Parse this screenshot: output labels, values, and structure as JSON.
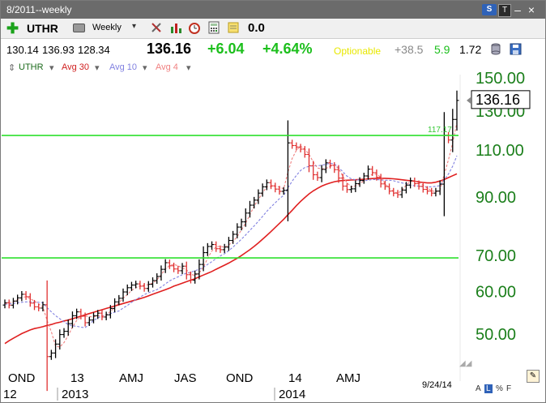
{
  "window": {
    "title": "8/2011--weekly",
    "s_button": "S",
    "t_button": "T",
    "min_glyph": "–",
    "close_glyph": "×"
  },
  "toolbar": {
    "symbol": "UTHR",
    "period": "Weekly",
    "period_caret": "▾",
    "plus_glyph": "✚",
    "value": "0.0",
    "icons": [
      "add-icon",
      "print-icon",
      "tools-icon",
      "bar-chart-icon",
      "alarm-icon",
      "calculator-icon",
      "note-icon"
    ]
  },
  "quote": {
    "open": "130.14",
    "high": "136.93",
    "low": "128.34",
    "last": "136.16",
    "change": "+6.04",
    "change_pct": "+4.64%",
    "optionable": "Optionable",
    "v1": "+38.5",
    "v2": "5.9",
    "v3": "1.72"
  },
  "legend": {
    "symbol": "UTHR",
    "ma30": "Avg 30",
    "ma10": "Avg 10",
    "ma4": "Avg 4"
  },
  "colors": {
    "price_up": "#000000",
    "price_down": "#e03030",
    "ma30": "#e02020",
    "ma10": "#8080e0",
    "ma4": "#f08080",
    "hline": "#2ee02e",
    "axis_text": "#1b7f1b"
  },
  "chart_data": {
    "type": "ohlc",
    "scale": "log",
    "ylim": [
      40,
      160
    ],
    "y_ticks": [
      150,
      130,
      110,
      90,
      70,
      60,
      50
    ],
    "y_tick_labels": [
      "150.00",
      "130.00",
      "110.00",
      "90.00",
      "70.00",
      "60.00",
      "50.00"
    ],
    "last_price_label": "136.16",
    "horizontal_lines": [
      117.17,
      69.3
    ],
    "annotations": [
      {
        "text": "117.17",
        "y": 117.17
      }
    ],
    "x_labels_top": [
      "OND",
      "13",
      "AMJ",
      "JAS",
      "OND",
      "14",
      "AMJ"
    ],
    "x_labels_bottom": [
      "12",
      "2013",
      "2014"
    ],
    "date_label": "9/24/14",
    "bar_width_weeks": 1,
    "n_bars": 108,
    "closes": [
      57.2,
      56.6,
      57.6,
      58.4,
      59.3,
      58.7,
      57.1,
      56.2,
      55.9,
      56.7,
      45.4,
      46.1,
      47.9,
      49.9,
      50.6,
      52.3,
      54.1,
      55.0,
      54.0,
      52.5,
      53.1,
      54.1,
      54.7,
      53.8,
      54.3,
      55.8,
      57.4,
      58.3,
      59.9,
      61.0,
      61.7,
      62.0,
      61.4,
      60.8,
      61.9,
      62.9,
      64.0,
      66.0,
      67.9,
      67.0,
      66.1,
      65.6,
      66.9,
      64.5,
      63.0,
      64.7,
      67.4,
      70.9,
      72.8,
      73.4,
      72.1,
      71.8,
      72.6,
      74.7,
      76.7,
      79.1,
      80.9,
      84.0,
      86.9,
      88.8,
      91.5,
      94.0,
      95.7,
      94.4,
      93.1,
      92.2,
      92.6,
      113.5,
      112.2,
      111.5,
      110.5,
      108.0,
      102.9,
      99.0,
      97.8,
      101.3,
      104.2,
      103.1,
      101.2,
      97.6,
      94.3,
      92.9,
      93.2,
      95.3,
      96.6,
      98.5,
      101.4,
      99.9,
      97.9,
      95.2,
      94.1,
      92.3,
      91.5,
      90.9,
      92.7,
      94.7,
      96.5,
      95.3,
      94.2,
      93.0,
      92.3,
      91.5,
      92.3,
      95.1,
      117.3,
      114.9,
      125.5,
      136.16
    ],
    "ma30": [
      48.0,
      48.6,
      49.1,
      49.6,
      50.1,
      50.5,
      50.9,
      51.2,
      51.4,
      51.6,
      51.9,
      52.1,
      52.4,
      52.6,
      52.9,
      53.1,
      53.4,
      53.7,
      54.0,
      54.3,
      54.6,
      54.9,
      55.2,
      55.5,
      55.8,
      56.1,
      56.4,
      56.7,
      57.0,
      57.3,
      57.6,
      57.9,
      58.2,
      58.5,
      58.9,
      59.3,
      59.7,
      60.1,
      60.5,
      60.9,
      61.4,
      61.8,
      62.2,
      62.6,
      63.0,
      63.4,
      63.9,
      64.4,
      64.9,
      65.4,
      66.0,
      66.6,
      67.2,
      67.8,
      68.5,
      69.2,
      70.0,
      70.9,
      71.8,
      72.8,
      73.9,
      75.1,
      76.3,
      77.6,
      79.0,
      80.4,
      81.8,
      83.4,
      85.0,
      86.7,
      88.3,
      89.8,
      91.2,
      92.4,
      93.4,
      94.3,
      95.0,
      95.6,
      96.1,
      96.4,
      96.6,
      96.7,
      96.8,
      96.9,
      97.0,
      97.1,
      97.3,
      97.4,
      97.5,
      97.5,
      97.5,
      97.4,
      97.3,
      97.1,
      96.9,
      96.7,
      96.5,
      96.3,
      96.0,
      95.8,
      95.6,
      95.6,
      95.9,
      96.4,
      97.0,
      97.8,
      98.6,
      99.4
    ],
    "ma10": [
      56.8,
      56.9,
      57.0,
      57.2,
      57.3,
      57.4,
      57.4,
      57.3,
      57.3,
      57.2,
      56.0,
      55.0,
      54.1,
      53.4,
      52.7,
      52.1,
      51.8,
      51.7,
      51.5,
      51.4,
      52.2,
      53.0,
      53.6,
      54.0,
      54.3,
      54.6,
      54.9,
      55.2,
      55.9,
      56.5,
      57.3,
      58.0,
      58.6,
      59.2,
      59.7,
      60.1,
      60.5,
      61.2,
      62.0,
      62.8,
      63.4,
      63.9,
      64.5,
      64.9,
      65.2,
      65.6,
      66.0,
      66.6,
      67.4,
      68.2,
      69.1,
      69.9,
      70.6,
      71.5,
      72.6,
      73.8,
      75.1,
      76.5,
      78.0,
      79.5,
      81.1,
      82.8,
      84.6,
      86.2,
      87.8,
      89.4,
      90.6,
      93.6,
      96.3,
      98.7,
      100.8,
      102.1,
      102.6,
      102.9,
      102.9,
      103.1,
      103.5,
      104.0,
      103.7,
      102.1,
      100.3,
      98.4,
      97.3,
      96.9,
      96.8,
      96.5,
      96.7,
      97.0,
      97.0,
      96.8,
      96.7,
      96.7,
      96.5,
      96.0,
      95.6,
      95.3,
      94.7,
      94.4,
      94.3,
      94.1,
      94.0,
      94.0,
      94.2,
      94.5,
      97.0,
      99.3,
      102.7,
      107.4
    ],
    "ma4": [
      56.9,
      57.2,
      57.4,
      57.9,
      58.5,
      58.7,
      58.2,
      57.6,
      56.9,
      56.2,
      53.0,
      50.5,
      47.5,
      47.3,
      48.2,
      49.7,
      51.5,
      53.0,
      53.9,
      54.0,
      53.9,
      53.8,
      54.1,
      54.0,
      54.3,
      55.1,
      56.1,
      57.2,
      58.3,
      59.2,
      60.3,
      61.0,
      61.5,
      61.7,
      61.8,
      62.2,
      63.1,
      64.5,
      66.1,
      67.1,
      67.4,
      67.0,
      66.4,
      65.9,
      64.6,
      64.3,
      65.0,
      66.6,
      69.2,
      71.4,
      72.6,
      72.9,
      72.5,
      73.3,
      74.3,
      76.0,
      78.1,
      80.5,
      83.4,
      86.5,
      89.0,
      91.6,
      94.0,
      94.2,
      94.3,
      93.9,
      93.2,
      100.1,
      106.1,
      109.9,
      111.9,
      110.5,
      108.0,
      104.6,
      101.9,
      101.5,
      101.7,
      102.6,
      103.2,
      101.7,
      98.3,
      95.7,
      93.9,
      94.4,
      95.1,
      96.6,
      98.2,
      99.2,
      99.3,
      97.9,
      95.3,
      93.4,
      92.2,
      91.4,
      92.6,
      94.7,
      96.2,
      96.3,
      95.7,
      94.7,
      93.5,
      92.5,
      92.0,
      92.6,
      99.2,
      105.6,
      113.5,
      123.7
    ]
  },
  "footer": {
    "opt_letters": [
      "A",
      "L",
      "%",
      "F"
    ]
  }
}
